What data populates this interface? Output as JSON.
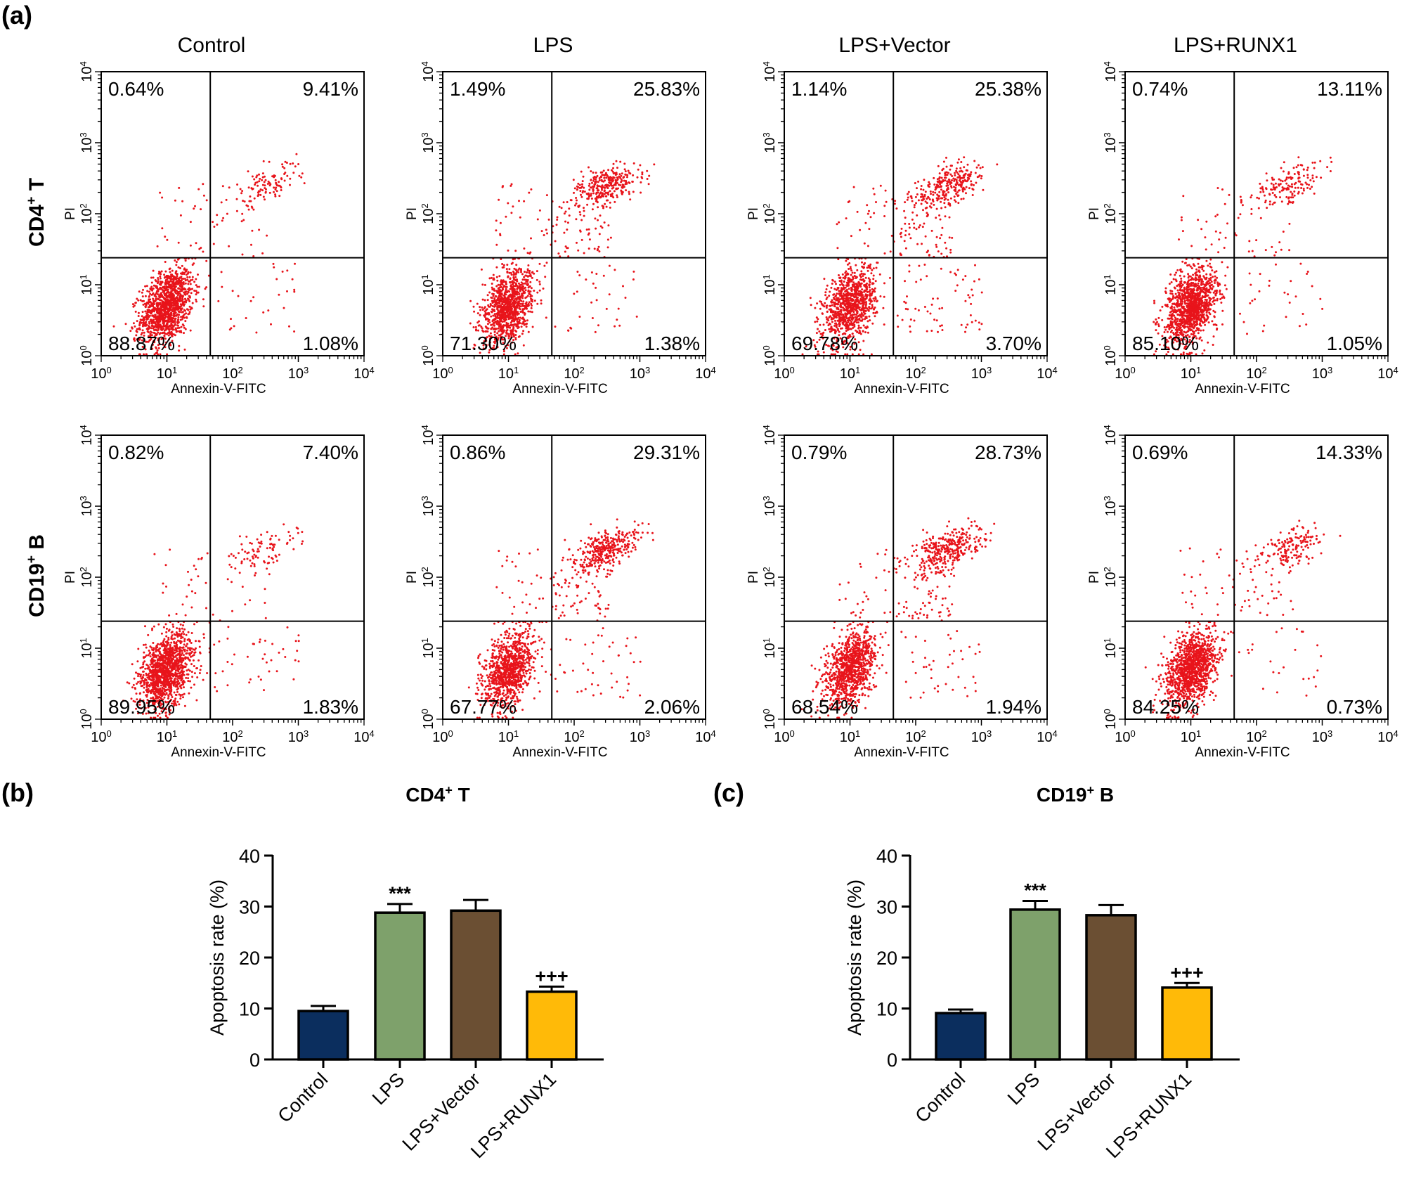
{
  "panel_labels": {
    "a": "(a)",
    "b": "(b)",
    "c": "(c)"
  },
  "flow": {
    "columns": [
      "Control",
      "LPS",
      "LPS+Vector",
      "LPS+RUNX1"
    ],
    "rows": [
      {
        "label": "CD4",
        "sup": "+",
        "suffix": " T"
      },
      {
        "label": "CD19",
        "sup": "+",
        "suffix": " B"
      }
    ],
    "xlabel": "Annexin-V-FITC",
    "ylabel": "PI",
    "tick_base": "10",
    "tick_exponents": [
      "0",
      "1",
      "2",
      "3",
      "4"
    ],
    "point_color": "#e8141b",
    "scale": "log",
    "quadrants": [
      [
        {
          "UL": "0.64%",
          "UR": "9.41%",
          "LL": "88.87%",
          "LR": "1.08%"
        },
        {
          "UL": "1.49%",
          "UR": "25.83%",
          "LL": "71.30%",
          "LR": "1.38%"
        },
        {
          "UL": "1.14%",
          "UR": "25.38%",
          "LL": "69.78%",
          "LR": "3.70%"
        },
        {
          "UL": "0.74%",
          "UR": "13.11%",
          "LL": "85.10%",
          "LR": "1.05%"
        }
      ],
      [
        {
          "UL": "0.82%",
          "UR": "7.40%",
          "LL": "89.95%",
          "LR": "1.83%"
        },
        {
          "UL": "0.86%",
          "UR": "29.31%",
          "LL": "67.77%",
          "LR": "2.06%"
        },
        {
          "UL": "0.79%",
          "UR": "28.73%",
          "LL": "68.54%",
          "LR": "1.94%"
        },
        {
          "UL": "0.69%",
          "UR": "14.33%",
          "LL": "84.25%",
          "LR": "0.73%"
        }
      ]
    ]
  },
  "chart_data": [
    {
      "type": "bar",
      "title": "CD4",
      "title_sup": "+",
      "title_suffix": " T",
      "categories": [
        "Control",
        "LPS",
        "LPS+Vector",
        "LPS+RUNX1"
      ],
      "values": [
        9.5,
        28.8,
        29.2,
        13.3
      ],
      "errors": [
        1.0,
        1.7,
        2.1,
        1.0
      ],
      "annotations": [
        "",
        "***",
        "",
        "+++"
      ],
      "colors": [
        "#0b2e5e",
        "#7ea16b",
        "#6b4f33",
        "#ffba08"
      ],
      "ylabel": "Apoptosis rate (%)",
      "yticks": [
        0,
        10,
        20,
        30,
        40
      ],
      "ylim": [
        0,
        40
      ]
    },
    {
      "type": "bar",
      "title": "CD19",
      "title_sup": "+",
      "title_suffix": " B",
      "categories": [
        "Control",
        "LPS",
        "LPS+Vector",
        "LPS+RUNX1"
      ],
      "values": [
        9.1,
        29.4,
        28.3,
        14.1
      ],
      "errors": [
        0.7,
        1.7,
        2.0,
        0.9
      ],
      "annotations": [
        "",
        "***",
        "",
        "+++"
      ],
      "colors": [
        "#0b2e5e",
        "#7ea16b",
        "#6b4f33",
        "#ffba08"
      ],
      "ylabel": "Apoptosis rate (%)",
      "yticks": [
        0,
        10,
        20,
        30,
        40
      ],
      "ylim": [
        0,
        40
      ]
    }
  ]
}
